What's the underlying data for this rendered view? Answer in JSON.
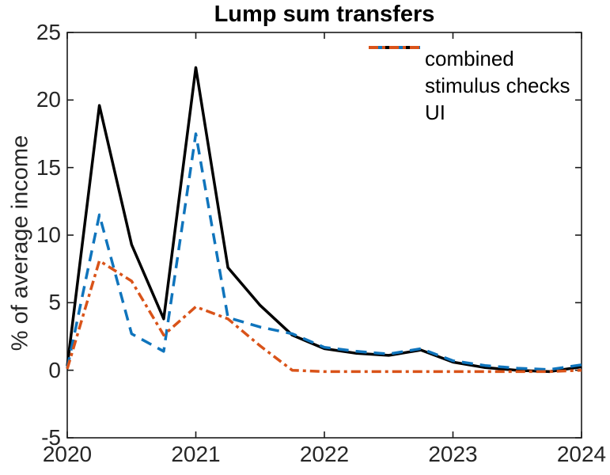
{
  "figure": {
    "title": "Lump sum transfers",
    "ylabel": "% of average income"
  },
  "chart_data": {
    "type": "line",
    "title": "Lump sum transfers",
    "xlabel": "",
    "ylabel": "% of average income",
    "xlim": [
      2020,
      2024
    ],
    "ylim": [
      -5,
      25
    ],
    "x_ticks": [
      "2020",
      "2021",
      "2022",
      "2023",
      "2024"
    ],
    "x_tick_values": [
      2020,
      2021,
      2022,
      2023,
      2024
    ],
    "y_ticks": [
      "-5",
      "0",
      "5",
      "10",
      "15",
      "20",
      "25"
    ],
    "y_tick_values": [
      -5,
      0,
      5,
      10,
      15,
      20,
      25
    ],
    "grid": false,
    "legend_position": "top-right-inside",
    "axis_color": "#1a1a1a",
    "x": [
      2020,
      2020.25,
      2020.5,
      2020.75,
      2021,
      2021.25,
      2021.5,
      2021.75,
      2022,
      2022.25,
      2022.5,
      2022.75,
      2023,
      2023.25,
      2023.5,
      2023.75,
      2024
    ],
    "series": [
      {
        "name": "combined",
        "color": "#000000",
        "line_style": "solid",
        "values": [
          0.3,
          19.6,
          9.3,
          3.8,
          22.4,
          7.6,
          4.8,
          2.6,
          1.6,
          1.25,
          1.1,
          1.5,
          0.6,
          0.2,
          0.0,
          -0.1,
          0.25
        ]
      },
      {
        "name": "stimulus checks",
        "color": "#0f74bc",
        "line_style": "dashed",
        "values": [
          0.15,
          11.5,
          2.7,
          1.4,
          17.5,
          3.9,
          3.2,
          2.7,
          1.7,
          1.4,
          1.2,
          1.6,
          0.7,
          0.35,
          0.15,
          0.05,
          0.4
        ]
      },
      {
        "name": "UI",
        "color": "#d95319",
        "line_style": "dash-dot",
        "values": [
          0.1,
          8.1,
          6.6,
          2.6,
          4.7,
          3.8,
          1.8,
          0.0,
          -0.1,
          -0.1,
          -0.1,
          -0.1,
          -0.1,
          -0.1,
          -0.1,
          -0.1,
          0.0
        ]
      }
    ]
  }
}
